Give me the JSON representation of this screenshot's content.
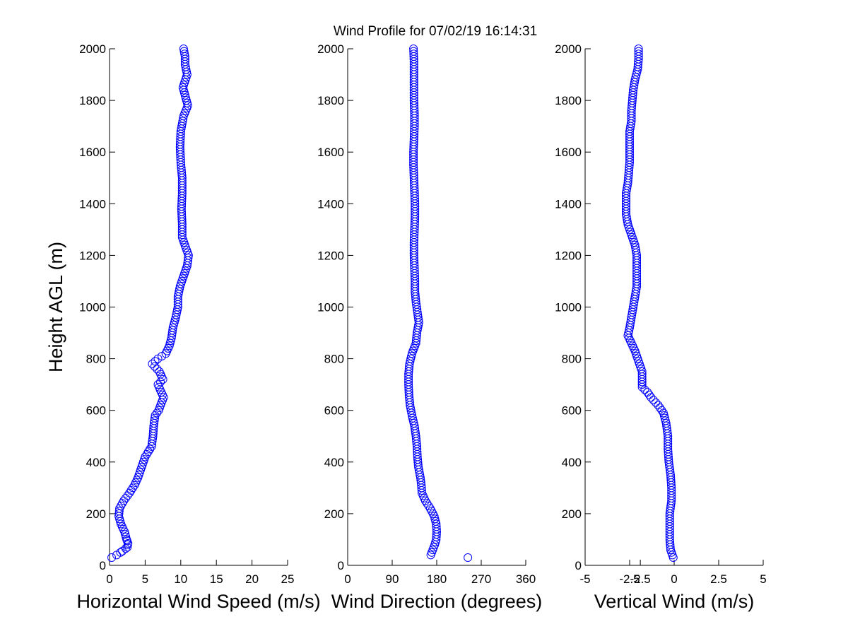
{
  "title": "Wind Profile for  07/02/19 16:14:31",
  "chart_data": [
    {
      "type": "scatter",
      "xlabel": "Horizontal Wind Speed (m/s)",
      "ylabel": "Height AGL (m)",
      "xlim": [
        0,
        25
      ],
      "ylim": [
        0,
        2000
      ],
      "xticks": [
        "0",
        "5",
        "10",
        "15",
        "20",
        "25"
      ],
      "yticks": [
        "0",
        "200",
        "400",
        "600",
        "800",
        "1000",
        "1200",
        "1400",
        "1600",
        "1800",
        "2000"
      ],
      "marker": "circle",
      "color": "#0000ff",
      "profile": [
        [
          30,
          0.3
        ],
        [
          40,
          1.0
        ],
        [
          55,
          1.8
        ],
        [
          70,
          2.5
        ],
        [
          85,
          2.6
        ],
        [
          100,
          2.4
        ],
        [
          130,
          2.1
        ],
        [
          160,
          1.6
        ],
        [
          190,
          1.3
        ],
        [
          220,
          1.4
        ],
        [
          250,
          2.0
        ],
        [
          280,
          2.8
        ],
        [
          310,
          3.5
        ],
        [
          340,
          4.0
        ],
        [
          380,
          4.5
        ],
        [
          420,
          5.0
        ],
        [
          460,
          5.9
        ],
        [
          500,
          6.1
        ],
        [
          540,
          6.2
        ],
        [
          580,
          6.4
        ],
        [
          600,
          6.9
        ],
        [
          630,
          7.3
        ],
        [
          650,
          7.6
        ],
        [
          680,
          7.1
        ],
        [
          700,
          6.8
        ],
        [
          720,
          7.5
        ],
        [
          750,
          7.0
        ],
        [
          780,
          6.0
        ],
        [
          800,
          6.8
        ],
        [
          820,
          7.9
        ],
        [
          850,
          8.4
        ],
        [
          880,
          8.7
        ],
        [
          920,
          8.9
        ],
        [
          960,
          9.3
        ],
        [
          1000,
          9.6
        ],
        [
          1040,
          9.6
        ],
        [
          1080,
          9.9
        ],
        [
          1120,
          10.4
        ],
        [
          1160,
          10.9
        ],
        [
          1200,
          11.1
        ],
        [
          1230,
          10.7
        ],
        [
          1270,
          10.2
        ],
        [
          1320,
          10.2
        ],
        [
          1380,
          10.1
        ],
        [
          1440,
          10.2
        ],
        [
          1500,
          10.2
        ],
        [
          1560,
          10.0
        ],
        [
          1620,
          9.9
        ],
        [
          1680,
          10.0
        ],
        [
          1740,
          10.4
        ],
        [
          1780,
          11.0
        ],
        [
          1810,
          10.7
        ],
        [
          1850,
          10.3
        ],
        [
          1900,
          10.9
        ],
        [
          1940,
          10.6
        ],
        [
          1970,
          10.6
        ],
        [
          2000,
          10.4
        ]
      ],
      "points": [
        [
          0.3,
          30
        ],
        [
          1.0,
          40
        ],
        [
          2.0,
          55
        ],
        [
          2.6,
          80
        ],
        [
          2.4,
          120
        ],
        [
          1.5,
          180
        ],
        [
          1.4,
          230
        ],
        [
          2.0,
          260
        ],
        [
          4.3,
          380
        ],
        [
          5.6,
          450
        ],
        [
          6.2,
          560
        ],
        [
          7.6,
          640
        ],
        [
          6.8,
          690
        ],
        [
          6.0,
          780
        ],
        [
          7.9,
          830
        ],
        [
          9.5,
          1020
        ],
        [
          10.9,
          1190
        ],
        [
          10.1,
          1400
        ],
        [
          9.9,
          1630
        ],
        [
          11.0,
          1780
        ],
        [
          10.4,
          2000
        ]
      ]
    },
    {
      "type": "scatter",
      "xlabel": "Wind Direction (degrees)",
      "ylabel": "",
      "xlim": [
        0,
        360
      ],
      "ylim": [
        0,
        2000
      ],
      "xticks": [
        "0",
        "90",
        "180",
        "270",
        "360"
      ],
      "yticks": [
        "0",
        "200",
        "400",
        "600",
        "800",
        "1000",
        "1200",
        "1400",
        "1600",
        "1800",
        "2000"
      ],
      "marker": "circle",
      "color": "#0000ff",
      "profile": [
        [
          40,
          168
        ],
        [
          60,
          172
        ],
        [
          80,
          176
        ],
        [
          100,
          179
        ],
        [
          130,
          180
        ],
        [
          160,
          179
        ],
        [
          190,
          175
        ],
        [
          220,
          167
        ],
        [
          250,
          157
        ],
        [
          280,
          150
        ],
        [
          310,
          149
        ],
        [
          340,
          147
        ],
        [
          380,
          143
        ],
        [
          420,
          141
        ],
        [
          460,
          140
        ],
        [
          500,
          138
        ],
        [
          540,
          135
        ],
        [
          580,
          130
        ],
        [
          620,
          126
        ],
        [
          660,
          124
        ],
        [
          700,
          123
        ],
        [
          740,
          123
        ],
        [
          780,
          125
        ],
        [
          820,
          130
        ],
        [
          860,
          138
        ],
        [
          900,
          140
        ],
        [
          940,
          144
        ],
        [
          980,
          141
        ],
        [
          1020,
          138
        ],
        [
          1060,
          136
        ],
        [
          1100,
          136
        ],
        [
          1150,
          135
        ],
        [
          1200,
          134
        ],
        [
          1250,
          134
        ],
        [
          1300,
          135
        ],
        [
          1350,
          136
        ],
        [
          1400,
          136
        ],
        [
          1450,
          135
        ],
        [
          1500,
          134
        ],
        [
          1550,
          133
        ],
        [
          1600,
          133
        ],
        [
          1650,
          134
        ],
        [
          1700,
          135
        ],
        [
          1750,
          135
        ],
        [
          1800,
          134
        ],
        [
          1850,
          134
        ],
        [
          1900,
          134
        ],
        [
          1950,
          134
        ],
        [
          2000,
          133
        ]
      ],
      "points": [
        [
          168,
          40
        ],
        [
          180,
          120
        ],
        [
          160,
          240
        ],
        [
          147,
          340
        ],
        [
          138,
          520
        ],
        [
          123,
          720
        ],
        [
          130,
          820
        ],
        [
          144,
          940
        ],
        [
          134,
          1200
        ],
        [
          136,
          1400
        ],
        [
          133,
          1600
        ],
        [
          134,
          2000
        ],
        [
          243,
          30
        ]
      ]
    },
    {
      "type": "scatter",
      "xlabel": "Vertical Wind (m/s)",
      "ylabel": "",
      "xlim": [
        -5,
        5
      ],
      "ylim": [
        0,
        2000
      ],
      "xticks": [
        "-5",
        "-2.5",
        "-2.5",
        "0",
        "2.5",
        "5"
      ],
      "xtick_values": [
        -5,
        -2.5,
        -2.5,
        0,
        2.5,
        5
      ],
      "yticks": [
        "0",
        "200",
        "400",
        "600",
        "800",
        "1000",
        "1200",
        "1400",
        "1600",
        "1800",
        "2000"
      ],
      "marker": "circle",
      "color": "#0000ff",
      "profile": [
        [
          30,
          -0.05
        ],
        [
          60,
          -0.2
        ],
        [
          100,
          -0.25
        ],
        [
          150,
          -0.25
        ],
        [
          200,
          -0.25
        ],
        [
          250,
          -0.15
        ],
        [
          300,
          -0.15
        ],
        [
          350,
          -0.2
        ],
        [
          400,
          -0.3
        ],
        [
          450,
          -0.35
        ],
        [
          500,
          -0.35
        ],
        [
          550,
          -0.45
        ],
        [
          590,
          -0.6
        ],
        [
          620,
          -0.9
        ],
        [
          650,
          -1.3
        ],
        [
          670,
          -1.5
        ],
        [
          690,
          -1.8
        ],
        [
          710,
          -1.8
        ],
        [
          750,
          -1.8
        ],
        [
          790,
          -2.0
        ],
        [
          830,
          -2.2
        ],
        [
          860,
          -2.4
        ],
        [
          890,
          -2.6
        ],
        [
          920,
          -2.5
        ],
        [
          960,
          -2.4
        ],
        [
          1000,
          -2.3
        ],
        [
          1040,
          -2.2
        ],
        [
          1080,
          -2.1
        ],
        [
          1120,
          -2.1
        ],
        [
          1160,
          -2.1
        ],
        [
          1200,
          -2.1
        ],
        [
          1240,
          -2.2
        ],
        [
          1280,
          -2.4
        ],
        [
          1320,
          -2.6
        ],
        [
          1360,
          -2.7
        ],
        [
          1400,
          -2.7
        ],
        [
          1440,
          -2.7
        ],
        [
          1480,
          -2.6
        ],
        [
          1520,
          -2.55
        ],
        [
          1560,
          -2.5
        ],
        [
          1600,
          -2.5
        ],
        [
          1640,
          -2.5
        ],
        [
          1680,
          -2.5
        ],
        [
          1720,
          -2.4
        ],
        [
          1760,
          -2.4
        ],
        [
          1800,
          -2.35
        ],
        [
          1840,
          -2.3
        ],
        [
          1880,
          -2.2
        ],
        [
          1920,
          -2.05
        ],
        [
          1960,
          -2.0
        ],
        [
          2000,
          -2.0
        ]
      ],
      "points": [
        [
          -0.05,
          30
        ],
        [
          -0.3,
          150
        ],
        [
          -0.3,
          400
        ],
        [
          -0.6,
          590
        ],
        [
          -1.3,
          650
        ],
        [
          -1.8,
          700
        ],
        [
          -2.6,
          900
        ],
        [
          -2.1,
          1150
        ],
        [
          -2.7,
          1400
        ],
        [
          -2.5,
          1600
        ],
        [
          -2.3,
          1820
        ],
        [
          -2.0,
          2000
        ]
      ]
    }
  ]
}
